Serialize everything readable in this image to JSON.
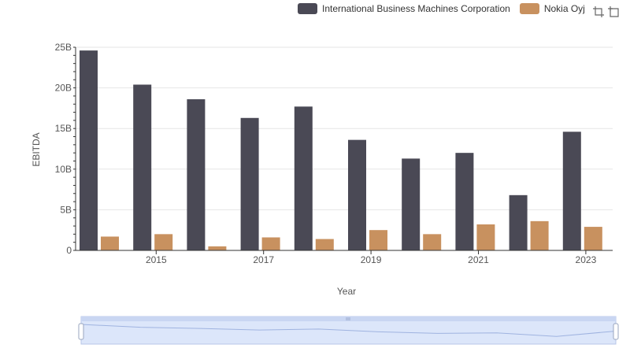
{
  "colors": {
    "ibm": "#4a4955",
    "nokia": "#c8915f",
    "grid": "#e6e6e6",
    "axis": "#333333",
    "zoom_fill": "#dce6fa",
    "zoom_border": "#b8c7e8"
  },
  "legend": {
    "items": [
      {
        "label": "International Business Machines Corporation",
        "color": "#4a4955"
      },
      {
        "label": "Nokia Oyj",
        "color": "#c8915f"
      }
    ]
  },
  "toolbar": {
    "icons": [
      "zoom-select-icon",
      "zoom-reset-icon"
    ]
  },
  "chart_data": {
    "type": "bar",
    "xlabel": "Year",
    "ylabel": "EBITDA",
    "years": [
      2014,
      2015,
      2016,
      2017,
      2018,
      2019,
      2020,
      2021,
      2022,
      2023
    ],
    "x_tick_labels": [
      "2015",
      "2017",
      "2019",
      "2021",
      "2023"
    ],
    "y_tick_labels": [
      "0",
      "5B",
      "10B",
      "15B",
      "20B",
      "25B"
    ],
    "y_ticks": [
      0,
      5,
      10,
      15,
      20,
      25
    ],
    "ylim": [
      0,
      25
    ],
    "units": "billions",
    "series": [
      {
        "name": "International Business Machines Corporation",
        "values": [
          24.6,
          20.4,
          18.6,
          16.3,
          17.7,
          13.6,
          11.3,
          12.0,
          6.8,
          14.6
        ]
      },
      {
        "name": "Nokia Oyj",
        "values": [
          1.7,
          2.0,
          0.5,
          1.6,
          1.4,
          2.5,
          2.0,
          3.2,
          3.6,
          2.9
        ]
      }
    ],
    "grid": true,
    "legend_position": "top-right"
  }
}
